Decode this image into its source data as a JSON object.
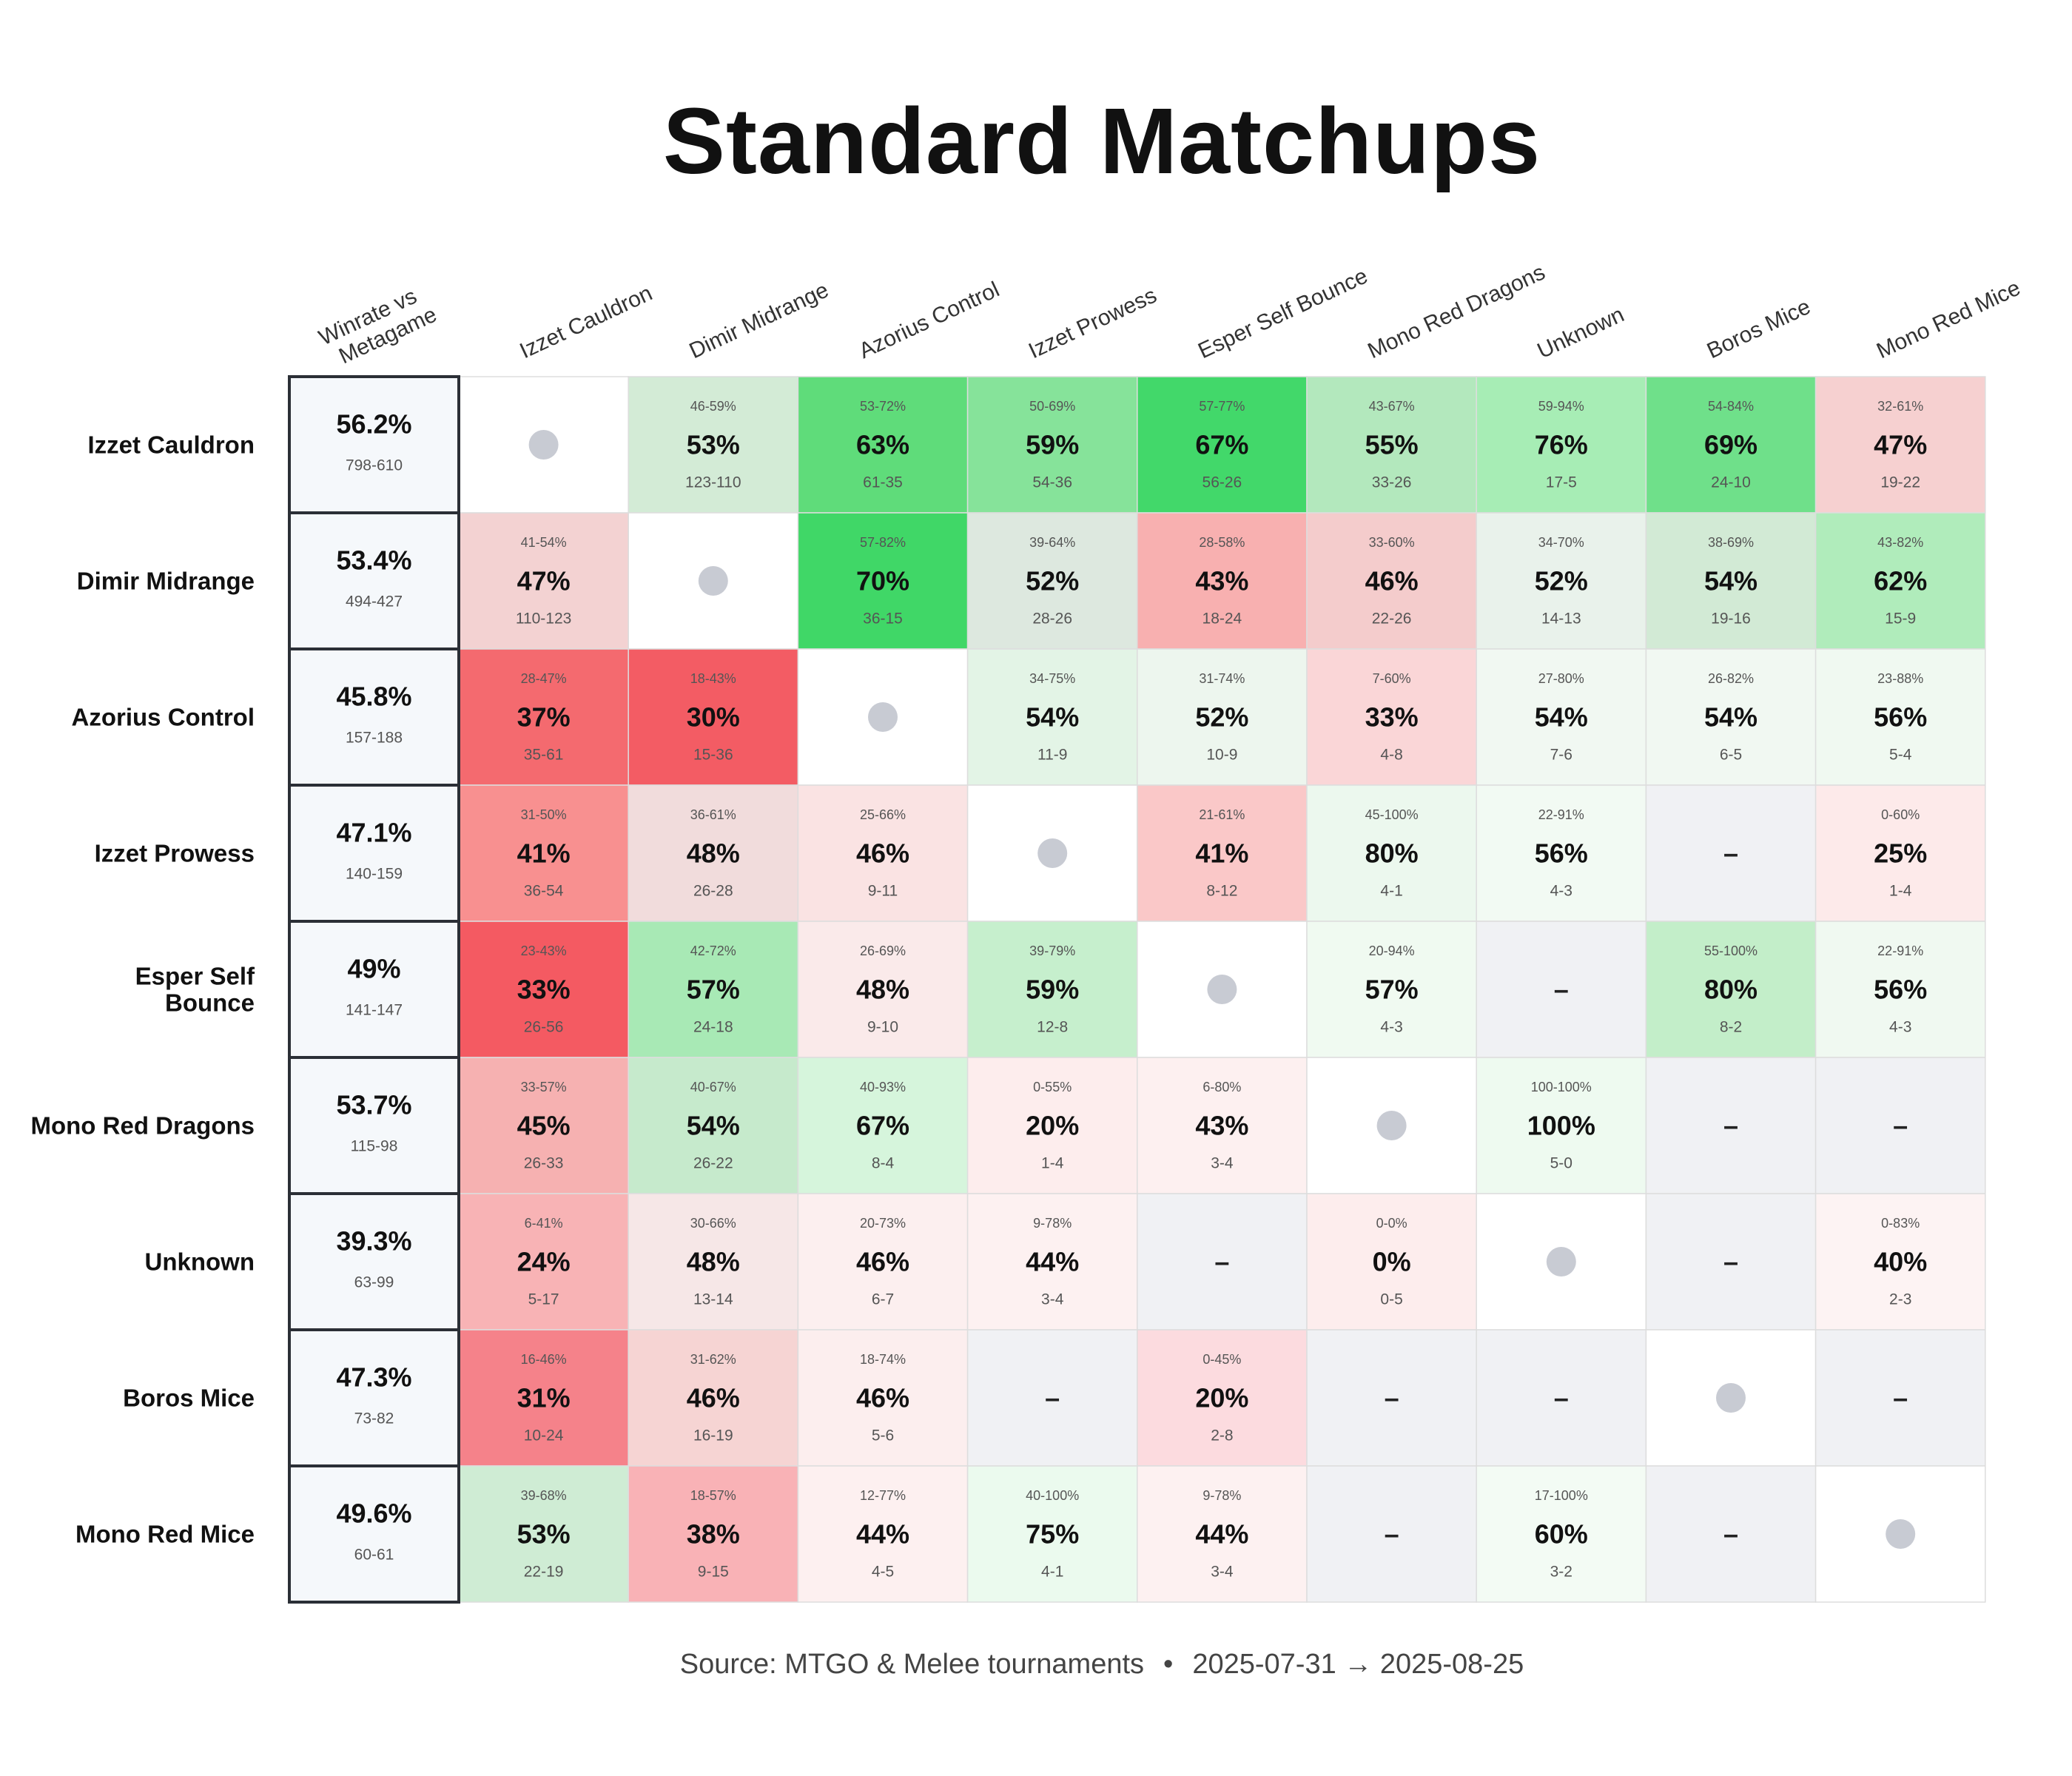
{
  "title": "Standard Matchups",
  "source": {
    "label": "Source: MTGO & Melee tournaments",
    "separator": "•",
    "date_range": "2025-07-31 → 2025-08-25"
  },
  "colors": {
    "grid_line": "#dddddd",
    "overall_border": "#2b2f36",
    "overall_fill": "#f5f8fb",
    "no_data_fill": "#f0f1f4",
    "self_fill": "#ffffff",
    "self_dot": "#c8cbd3"
  },
  "chart_data": {
    "type": "heatmap",
    "title": "Standard Matchups",
    "overall_column_label": "Winrate vs Metagame",
    "rows": [
      "Izzet Cauldron",
      "Dimir Midrange",
      "Azorius Control",
      "Izzet Prowess",
      "Esper Self Bounce",
      "Mono Red Dragons",
      "Unknown",
      "Boros Mice",
      "Mono Red Mice"
    ],
    "row_labels": [
      [
        "Izzet Cauldron"
      ],
      [
        "Dimir Midrange"
      ],
      [
        "Azorius Control"
      ],
      [
        "Izzet Prowess"
      ],
      [
        "Esper Self",
        "Bounce"
      ],
      [
        "Mono Red Dragons"
      ],
      [
        "Unknown"
      ],
      [
        "Boros Mice"
      ],
      [
        "Mono Red Mice"
      ]
    ],
    "columns": [
      "Izzet Cauldron",
      "Dimir Midrange",
      "Azorius Control",
      "Izzet Prowess",
      "Esper Self Bounce",
      "Mono Red Dragons",
      "Unknown",
      "Boros Mice",
      "Mono Red Mice"
    ],
    "overall": [
      {
        "winrate": "56.2%",
        "record": "798-610"
      },
      {
        "winrate": "53.4%",
        "record": "494-427"
      },
      {
        "winrate": "45.8%",
        "record": "157-188"
      },
      {
        "winrate": "47.1%",
        "record": "140-159"
      },
      {
        "winrate": "49%",
        "record": "141-147"
      },
      {
        "winrate": "53.7%",
        "record": "115-98"
      },
      {
        "winrate": "39.3%",
        "record": "63-99"
      },
      {
        "winrate": "47.3%",
        "record": "73-82"
      },
      {
        "winrate": "49.6%",
        "record": "60-61"
      }
    ],
    "no_data_symbol": "–",
    "cells": [
      [
        {
          "self": true
        },
        {
          "wr": "53%",
          "ci": "46-59%",
          "record": "123-110",
          "color": "#d3ebd6"
        },
        {
          "wr": "63%",
          "ci": "53-72%",
          "record": "61-35",
          "color": "#5fdc7a"
        },
        {
          "wr": "59%",
          "ci": "50-69%",
          "record": "54-36",
          "color": "#86e39a"
        },
        {
          "wr": "67%",
          "ci": "57-77%",
          "record": "56-26",
          "color": "#42d86a"
        },
        {
          "wr": "55%",
          "ci": "43-67%",
          "record": "33-26",
          "color": "#b3e8bd"
        },
        {
          "wr": "76%",
          "ci": "59-94%",
          "record": "17-5",
          "color": "#a7edb5"
        },
        {
          "wr": "69%",
          "ci": "54-84%",
          "record": "24-10",
          "color": "#6fe08a"
        },
        {
          "wr": "47%",
          "ci": "32-61%",
          "record": "19-22",
          "color": "#f6d0d0"
        }
      ],
      [
        {
          "wr": "47%",
          "ci": "41-54%",
          "record": "110-123",
          "color": "#f3d2d2"
        },
        {
          "self": true
        },
        {
          "wr": "70%",
          "ci": "57-82%",
          "record": "36-15",
          "color": "#40d767"
        },
        {
          "wr": "52%",
          "ci": "39-64%",
          "record": "28-26",
          "color": "#dde8df"
        },
        {
          "wr": "43%",
          "ci": "28-58%",
          "record": "18-24",
          "color": "#f8b0b0"
        },
        {
          "wr": "46%",
          "ci": "33-60%",
          "record": "22-26",
          "color": "#f4cccc"
        },
        {
          "wr": "52%",
          "ci": "34-70%",
          "record": "14-13",
          "color": "#e9f2eb"
        },
        {
          "wr": "54%",
          "ci": "38-69%",
          "record": "19-16",
          "color": "#d2ead5"
        },
        {
          "wr": "62%",
          "ci": "43-82%",
          "record": "15-9",
          "color": "#b0ecbb"
        }
      ],
      [
        {
          "wr": "37%",
          "ci": "28-47%",
          "record": "35-61",
          "color": "#f46a6f"
        },
        {
          "wr": "30%",
          "ci": "18-43%",
          "record": "15-36",
          "color": "#f35c64"
        },
        {
          "self": true
        },
        {
          "wr": "54%",
          "ci": "34-75%",
          "record": "11-9",
          "color": "#e3f4e6"
        },
        {
          "wr": "52%",
          "ci": "31-74%",
          "record": "10-9",
          "color": "#edf6ee"
        },
        {
          "wr": "33%",
          "ci": "7-60%",
          "record": "4-8",
          "color": "#fad6d7"
        },
        {
          "wr": "54%",
          "ci": "27-80%",
          "record": "7-6",
          "color": "#f1f8f2"
        },
        {
          "wr": "54%",
          "ci": "26-82%",
          "record": "6-5",
          "color": "#f1f8f2"
        },
        {
          "wr": "56%",
          "ci": "23-88%",
          "record": "5-4",
          "color": "#f0f9f1"
        }
      ],
      [
        {
          "wr": "41%",
          "ci": "31-50%",
          "record": "36-54",
          "color": "#f89090"
        },
        {
          "wr": "48%",
          "ci": "36-61%",
          "record": "26-28",
          "color": "#f1dcdc"
        },
        {
          "wr": "46%",
          "ci": "25-66%",
          "record": "9-11",
          "color": "#fae3e3"
        },
        {
          "self": true
        },
        {
          "wr": "41%",
          "ci": "21-61%",
          "record": "8-12",
          "color": "#fac8c8"
        },
        {
          "wr": "80%",
          "ci": "45-100%",
          "record": "4-1",
          "color": "#ecf8ee"
        },
        {
          "wr": "56%",
          "ci": "22-91%",
          "record": "4-3",
          "color": "#f2faf3"
        },
        {
          "empty": true
        },
        {
          "wr": "25%",
          "ci": "0-60%",
          "record": "1-4",
          "color": "#fdeaea"
        }
      ],
      [
        {
          "wr": "33%",
          "ci": "23-43%",
          "record": "26-56",
          "color": "#f45a62"
        },
        {
          "wr": "57%",
          "ci": "42-72%",
          "record": "24-18",
          "color": "#a8e9b5"
        },
        {
          "wr": "48%",
          "ci": "26-69%",
          "record": "9-10",
          "color": "#faeaea"
        },
        {
          "wr": "59%",
          "ci": "39-79%",
          "record": "12-8",
          "color": "#c6efcd"
        },
        {
          "self": true
        },
        {
          "wr": "57%",
          "ci": "20-94%",
          "record": "4-3",
          "color": "#f0faf1"
        },
        {
          "empty": true
        },
        {
          "wr": "80%",
          "ci": "55-100%",
          "record": "8-2",
          "color": "#c3eec9"
        },
        {
          "wr": "56%",
          "ci": "22-91%",
          "record": "4-3",
          "color": "#f0f9f1"
        }
      ],
      [
        {
          "wr": "45%",
          "ci": "33-57%",
          "record": "26-33",
          "color": "#f6b1b1"
        },
        {
          "wr": "54%",
          "ci": "40-67%",
          "record": "26-22",
          "color": "#c6eacc"
        },
        {
          "wr": "67%",
          "ci": "40-93%",
          "record": "8-4",
          "color": "#d6f5dc"
        },
        {
          "wr": "20%",
          "ci": "0-55%",
          "record": "1-4",
          "color": "#fdeded"
        },
        {
          "wr": "43%",
          "ci": "6-80%",
          "record": "3-4",
          "color": "#fdf0f0"
        },
        {
          "self": true
        },
        {
          "wr": "100%",
          "ci": "100-100%",
          "record": "5-0",
          "color": "#eefaf0"
        },
        {
          "empty": true
        },
        {
          "empty": true
        }
      ],
      [
        {
          "wr": "24%",
          "ci": "6-41%",
          "record": "5-17",
          "color": "#f8b3b5"
        },
        {
          "wr": "48%",
          "ci": "30-66%",
          "record": "13-14",
          "color": "#f6e7e7"
        },
        {
          "wr": "46%",
          "ci": "20-73%",
          "record": "6-7",
          "color": "#fcefef"
        },
        {
          "wr": "44%",
          "ci": "9-78%",
          "record": "3-4",
          "color": "#fdf1f1"
        },
        {
          "empty": true
        },
        {
          "wr": "0%",
          "ci": "0-0%",
          "record": "0-5",
          "color": "#fdeded"
        },
        {
          "self": true
        },
        {
          "empty": true
        },
        {
          "wr": "40%",
          "ci": "0-83%",
          "record": "2-3",
          "color": "#fdf3f3"
        }
      ],
      [
        {
          "wr": "31%",
          "ci": "16-46%",
          "record": "10-24",
          "color": "#f5828a"
        },
        {
          "wr": "46%",
          "ci": "31-62%",
          "record": "16-19",
          "color": "#f6d4d3"
        },
        {
          "wr": "46%",
          "ci": "18-74%",
          "record": "5-6",
          "color": "#fceeee"
        },
        {
          "empty": true
        },
        {
          "wr": "20%",
          "ci": "0-45%",
          "record": "2-8",
          "color": "#fcdbdf"
        },
        {
          "empty": true
        },
        {
          "empty": true
        },
        {
          "self": true
        },
        {
          "empty": true
        }
      ],
      [
        {
          "wr": "53%",
          "ci": "39-68%",
          "record": "22-19",
          "color": "#cfecd4"
        },
        {
          "wr": "38%",
          "ci": "18-57%",
          "record": "9-15",
          "color": "#f9b2b6"
        },
        {
          "wr": "44%",
          "ci": "12-77%",
          "record": "4-5",
          "color": "#fdf0f0"
        },
        {
          "wr": "75%",
          "ci": "40-100%",
          "record": "4-1",
          "color": "#ebfaee"
        },
        {
          "wr": "44%",
          "ci": "9-78%",
          "record": "3-4",
          "color": "#fdf1f1"
        },
        {
          "empty": true
        },
        {
          "wr": "60%",
          "ci": "17-100%",
          "record": "3-2",
          "color": "#f3fbf4"
        },
        {
          "empty": true
        },
        {
          "self": true
        }
      ]
    ]
  }
}
